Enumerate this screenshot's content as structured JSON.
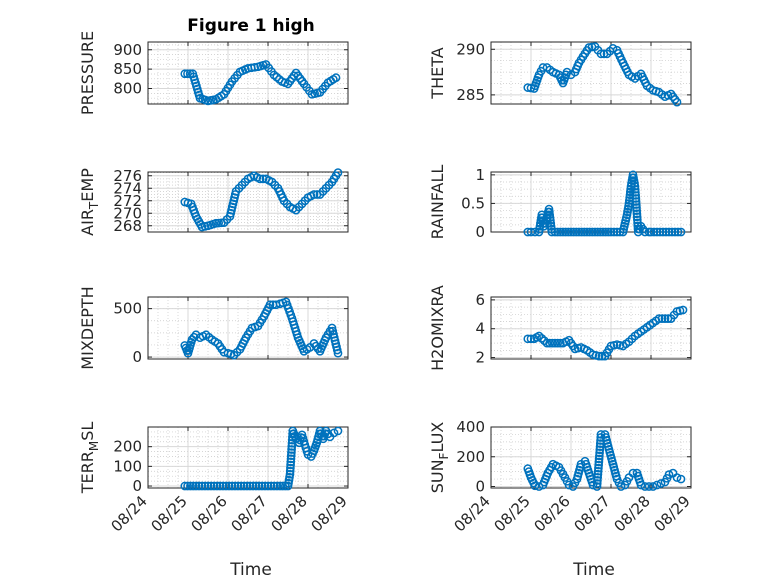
{
  "figure_title": "Figure 1 high",
  "x_tick_labels": [
    "08/24",
    "08/25",
    "08/26",
    "08/27",
    "08/28",
    "08/29"
  ],
  "x_label": "Time",
  "marker_color": "#0072BD",
  "chart_data": [
    {
      "type": "scatter",
      "ylabel": "PRESSURE",
      "ylim": [
        760,
        920
      ],
      "yticks": [
        800,
        850,
        900
      ],
      "ytick_labels": [
        "800",
        "850",
        "900"
      ],
      "xlim": [
        0,
        5
      ],
      "grid": true,
      "series": [
        {
          "x": [
            0.92,
            1.12,
            1.3,
            1.5,
            1.7,
            1.9,
            2.1,
            2.3,
            2.5,
            2.75,
            2.95,
            3.15,
            3.35,
            3.5,
            3.7,
            3.9,
            4.1,
            4.3,
            4.5,
            4.7
          ],
          "y": [
            838,
            838,
            775,
            768,
            772,
            785,
            818,
            843,
            852,
            856,
            862,
            835,
            818,
            812,
            840,
            812,
            785,
            790,
            815,
            828
          ]
        }
      ]
    },
    {
      "type": "scatter",
      "ylabel": "THETA",
      "ylim": [
        284,
        290.8
      ],
      "yticks": [
        285,
        290
      ],
      "ytick_labels": [
        "285",
        "290"
      ],
      "xlim": [
        0,
        5
      ],
      "grid": true,
      "series": [
        {
          "x": [
            0.92,
            1.08,
            1.2,
            1.3,
            1.4,
            1.55,
            1.7,
            1.8,
            1.9,
            2.0,
            2.1,
            2.2,
            2.3,
            2.45,
            2.6,
            2.75,
            2.9,
            3.05,
            3.15,
            3.3,
            3.45,
            3.6,
            3.75,
            3.9,
            4.05,
            4.2,
            4.35,
            4.5,
            4.65
          ],
          "y": [
            285.8,
            285.7,
            287.2,
            288,
            288,
            287.5,
            287.2,
            286.3,
            287.5,
            287.2,
            287.5,
            288.5,
            289.2,
            290.2,
            290.3,
            289.5,
            289.5,
            290.1,
            289.9,
            288.5,
            287.2,
            286.8,
            287.3,
            286,
            285.5,
            285.3,
            284.8,
            285.1,
            284.2
          ]
        }
      ]
    },
    {
      "type": "scatter",
      "ylabel": "AIRTEMP",
      "ylim": [
        267,
        276.6
      ],
      "yticks": [
        268,
        270,
        272,
        274,
        276
      ],
      "ytick_labels": [
        "268",
        "270",
        "272",
        "274",
        "276"
      ],
      "xlim": [
        0,
        5
      ],
      "grid": true,
      "series": [
        {
          "x": [
            0.92,
            1.08,
            1.2,
            1.35,
            1.5,
            1.7,
            1.9,
            2.05,
            2.2,
            2.35,
            2.5,
            2.65,
            2.8,
            2.95,
            3.1,
            3.25,
            3.4,
            3.55,
            3.7,
            3.85,
            4.0,
            4.15,
            4.3,
            4.45,
            4.6,
            4.75
          ],
          "y": [
            271.8,
            271.5,
            269.5,
            267.8,
            268,
            268.4,
            268.5,
            269.5,
            273.5,
            274.5,
            275.5,
            276,
            275.5,
            275.5,
            275,
            274,
            272,
            271,
            270.5,
            271.5,
            272.5,
            273,
            273,
            274,
            275,
            276.5
          ]
        }
      ]
    },
    {
      "type": "scatter",
      "ylabel": "RAINFALL",
      "ylim": [
        0,
        1.05
      ],
      "yticks": [
        0,
        0.5,
        1
      ],
      "ytick_labels": [
        "0",
        "0.5",
        "1"
      ],
      "xlim": [
        0,
        5
      ],
      "grid": true,
      "series": [
        {
          "x": [
            0.92,
            1.0,
            1.1,
            1.2,
            1.27,
            1.32,
            1.38,
            1.45,
            1.52,
            1.6,
            1.8,
            2.0,
            2.2,
            2.4,
            2.6,
            2.8,
            3.0,
            3.15,
            3.3,
            3.4,
            3.45,
            3.5,
            3.55,
            3.6,
            3.68,
            3.75,
            3.85,
            3.95,
            4.0,
            4.15,
            4.3,
            4.45,
            4.6,
            4.75
          ],
          "y": [
            0,
            0,
            0,
            0,
            0.3,
            0.1,
            0.2,
            0.4,
            0,
            0,
            0,
            0,
            0,
            0,
            0,
            0,
            0,
            0,
            0,
            0.3,
            0.5,
            0.8,
            1.0,
            0.8,
            0,
            0.1,
            0,
            0,
            0,
            0,
            0,
            0,
            0,
            0
          ]
        }
      ]
    },
    {
      "type": "scatter",
      "ylabel": "MIXDEPTH",
      "ylim": [
        -20,
        620
      ],
      "yticks": [
        0,
        500
      ],
      "ytick_labels": [
        "0",
        "500"
      ],
      "xlim": [
        0,
        5
      ],
      "grid": true,
      "series": [
        {
          "x": [
            0.92,
            1.0,
            1.1,
            1.2,
            1.3,
            1.45,
            1.6,
            1.75,
            1.9,
            2.0,
            2.15,
            2.3,
            2.45,
            2.6,
            2.75,
            2.9,
            3.05,
            3.2,
            3.3,
            3.45,
            3.6,
            3.75,
            3.9,
            4.05,
            4.15,
            4.3,
            4.45,
            4.6,
            4.75
          ],
          "y": [
            120,
            40,
            180,
            230,
            200,
            230,
            180,
            140,
            50,
            40,
            20,
            80,
            200,
            300,
            320,
            420,
            540,
            540,
            550,
            570,
            400,
            200,
            60,
            100,
            140,
            60,
            200,
            300,
            40
          ]
        }
      ]
    },
    {
      "type": "scatter",
      "ylabel": "H2OMIXRA",
      "ylim": [
        1.9,
        6.2
      ],
      "yticks": [
        2,
        4,
        6
      ],
      "ytick_labels": [
        "2",
        "4",
        "6"
      ],
      "xlim": [
        0,
        5
      ],
      "grid": true,
      "series": [
        {
          "x": [
            0.92,
            1.08,
            1.2,
            1.4,
            1.6,
            1.8,
            1.95,
            2.1,
            2.25,
            2.4,
            2.55,
            2.7,
            2.85,
            3.0,
            3.15,
            3.3,
            3.45,
            3.6,
            3.75,
            3.9,
            4.05,
            4.2,
            4.35,
            4.5,
            4.65,
            4.8
          ],
          "y": [
            3.3,
            3.3,
            3.5,
            3,
            3,
            3,
            3.2,
            2.6,
            2.7,
            2.5,
            2.2,
            2.1,
            2.1,
            2.8,
            2.9,
            2.8,
            3.1,
            3.5,
            3.8,
            4.1,
            4.4,
            4.7,
            4.7,
            4.7,
            5.2,
            5.3
          ]
        }
      ]
    },
    {
      "type": "scatter",
      "ylabel": "TERRMSL",
      "ylim": [
        -10,
        300
      ],
      "yticks": [
        0,
        100,
        200
      ],
      "ytick_labels": [
        "0",
        "100",
        "200"
      ],
      "xlim": [
        0,
        5
      ],
      "grid": true,
      "series": [
        {
          "x": [
            0.92,
            1.2,
            1.5,
            1.8,
            2.1,
            2.4,
            2.7,
            3.0,
            3.3,
            3.5,
            3.55,
            3.62,
            3.7,
            3.78,
            3.85,
            3.92,
            4.0,
            4.08,
            4.15,
            4.22,
            4.3,
            4.38,
            4.45,
            4.55,
            4.65,
            4.75
          ],
          "y": [
            0,
            0,
            0,
            0,
            0,
            0,
            0,
            0,
            0,
            0,
            60,
            280,
            240,
            220,
            260,
            210,
            160,
            150,
            180,
            220,
            280,
            240,
            280,
            250,
            270,
            280
          ]
        }
      ]
    },
    {
      "type": "scatter",
      "ylabel": "SUNFLUX",
      "ylim": [
        -10,
        400
      ],
      "yticks": [
        0,
        200,
        400
      ],
      "ytick_labels": [
        "0",
        "200",
        "400"
      ],
      "xlim": [
        0,
        5
      ],
      "grid": true,
      "series": [
        {
          "x": [
            0.92,
            1.0,
            1.1,
            1.2,
            1.3,
            1.42,
            1.55,
            1.7,
            1.85,
            1.95,
            2.05,
            2.15,
            2.25,
            2.35,
            2.45,
            2.55,
            2.65,
            2.75,
            2.85,
            2.95,
            3.05,
            3.15,
            3.25,
            3.35,
            3.45,
            3.55,
            3.65,
            3.75,
            3.85,
            3.95,
            4.05,
            4.15,
            4.25,
            4.35,
            4.45,
            4.55,
            4.65,
            4.75
          ],
          "y": [
            120,
            60,
            5,
            0,
            10,
            90,
            150,
            130,
            60,
            10,
            0,
            50,
            150,
            170,
            90,
            10,
            0,
            350,
            350,
            250,
            150,
            50,
            0,
            10,
            60,
            90,
            90,
            10,
            0,
            0,
            0,
            10,
            20,
            30,
            80,
            90,
            60,
            50
          ]
        }
      ]
    }
  ]
}
